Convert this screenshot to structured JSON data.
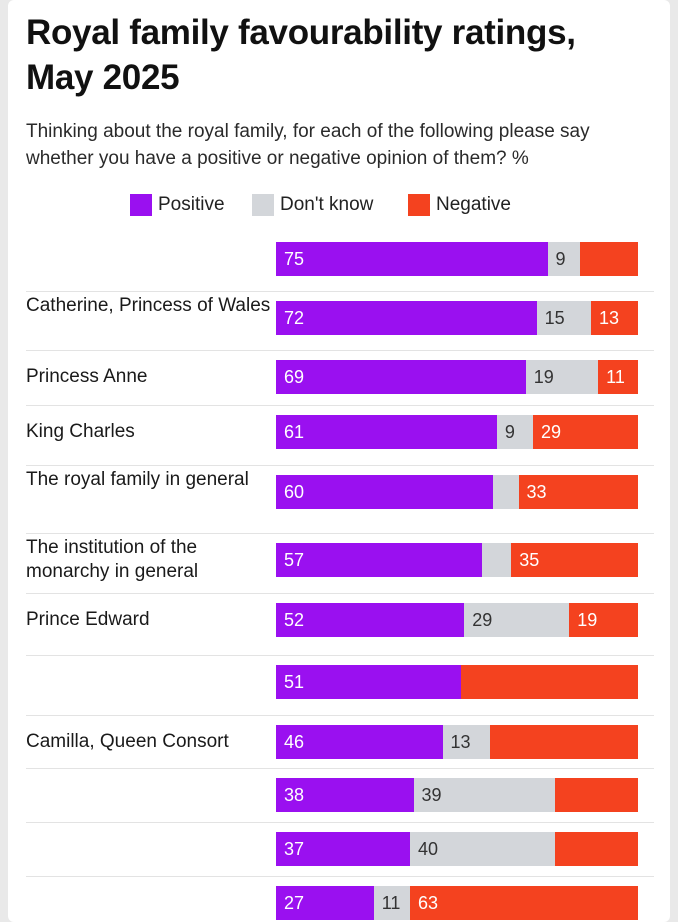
{
  "title": "Royal family favourability ratings, May 2025",
  "subtitle": "Thinking about the royal family, for each of the following please say whether you have a positive or negative opinion of them? %",
  "colors": {
    "positive": "#9a10f0",
    "dont_know": "#d3d6da",
    "negative": "#f4421f"
  },
  "chart_data": {
    "type": "bar",
    "orientation": "horizontal-stacked",
    "legend": [
      "Positive",
      "Don't know",
      "Negative"
    ],
    "legend_placement": "top",
    "categories": [
      "",
      "Catherine, Princess of Wales",
      "Princess Anne",
      "King Charles",
      "The royal family in general",
      "The institution of the monarchy in general",
      "Prince Edward",
      "",
      "Camilla, Queen Consort",
      "",
      "",
      ""
    ],
    "series": [
      {
        "name": "Positive",
        "values": [
          75,
          72,
          69,
          61,
          60,
          57,
          52,
          51,
          46,
          38,
          37,
          27
        ]
      },
      {
        "name": "Don't know",
        "values": [
          9,
          15,
          19,
          9,
          null,
          null,
          29,
          null,
          13,
          39,
          40,
          11
        ]
      },
      {
        "name": "Negative",
        "values": [
          null,
          13,
          11,
          29,
          33,
          35,
          19,
          null,
          null,
          null,
          null,
          63
        ]
      }
    ],
    "blurred_rows": [
      0,
      7,
      9,
      10,
      11
    ],
    "xlim": [
      0,
      100
    ]
  }
}
